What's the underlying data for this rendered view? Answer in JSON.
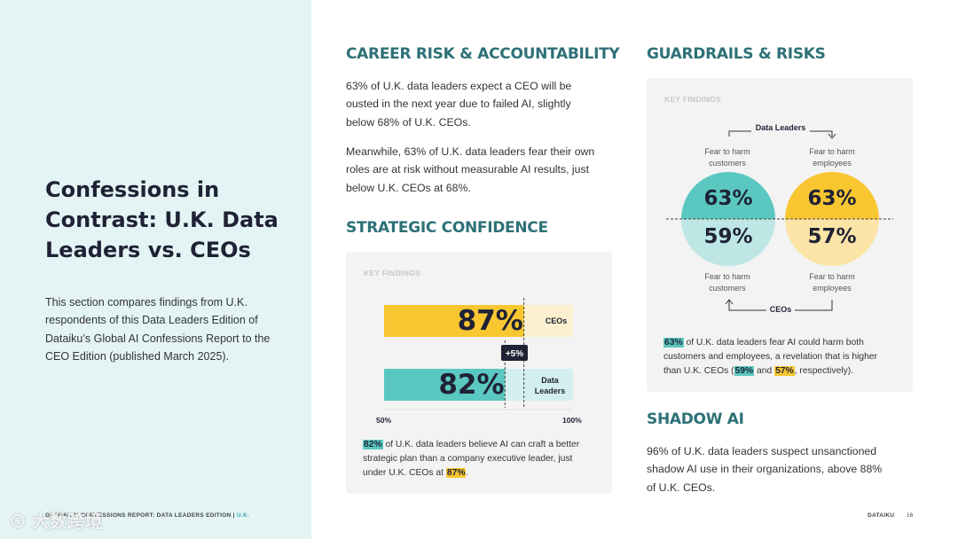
{
  "left": {
    "title": "Confessions in Contrast: U.K. Data Leaders vs. CEOs",
    "intro": "This section compares findings from U.K. respondents of this Data Leaders Edition of Dataiku’s Global AI Confessions Report to the CEO Edition (published March 2025)."
  },
  "career": {
    "title": "CAREER RISK & ACCOUNTABILITY",
    "p1": "63% of U.K. data leaders expect a CEO will be ousted in the next year due to failed AI, slightly below 68% of U.K. CEOs.",
    "p2": "Meanwhile, 63% of U.K. data leaders fear their own roles are at risk without measurable AI results, just below U.K. CEOs at 68%."
  },
  "strategic": {
    "title": "STRATEGIC CONFIDENCE",
    "key_findings": "KEY FINDINGS",
    "note_pct_dl": "82%",
    "note_text": " of U.K. data leaders believe AI can craft a better strategic plan than a company executive leader, just under U.K. CEOs at ",
    "note_pct_ceo": "87%",
    "note_end": "."
  },
  "guardrails": {
    "title": "GUARDRAILS & RISKS",
    "key_findings": "KEY FINDINGS",
    "top_group": "Data Leaders",
    "bottom_group": "CEOs",
    "label_customers": "Fear to harm customers",
    "label_employees": "Fear to harm employees",
    "note_pct": "63%",
    "note_text": " of U.K. data leaders fear AI could harm both customers and employees, a revelation that is higher than U.K. CEOs (",
    "note_pct2": "59%",
    "note_and": " and ",
    "note_pct3": "57%",
    "note_end": ", respectively)."
  },
  "shadow": {
    "title": "SHADOW AI",
    "p": "96% of U.K. data leaders suspect unsanctioned shadow AI use in their organizations, above 88% of U.K. CEOs."
  },
  "chart_data": [
    {
      "type": "bar",
      "orientation": "horizontal",
      "categories": [
        "CEOs",
        "Data Leaders"
      ],
      "values": [
        87,
        82
      ],
      "value_labels": [
        "87%",
        "82%"
      ],
      "xlim": [
        50,
        100
      ],
      "x_tick_labels": [
        "50%",
        "100%"
      ],
      "annotation": "+5%",
      "colors": [
        "#f8c631",
        "#5ac8c1"
      ]
    },
    {
      "type": "pie",
      "group": "Data Leaders vs CEOs",
      "items": [
        {
          "label": "Fear to harm customers",
          "data_leaders": 63,
          "ceos": 59,
          "data_leaders_label": "63%",
          "ceos_label": "59%",
          "color_dl": "#5ac8c1",
          "color_ceo": "#bde6e5"
        },
        {
          "label": "Fear to harm employees",
          "data_leaders": 63,
          "ceos": 57,
          "data_leaders_label": "63%",
          "ceos_label": "57%",
          "color_dl": "#f8c631",
          "color_ceo": "#fbe4a6"
        }
      ]
    }
  ],
  "footer": {
    "left": "GLOBAL AI CONFESSIONS REPORT: DATA LEADERS EDITION | ",
    "left_uk": "U.K.",
    "right": "DATAIKU",
    "page": "16"
  },
  "watermark": "大数跨境"
}
